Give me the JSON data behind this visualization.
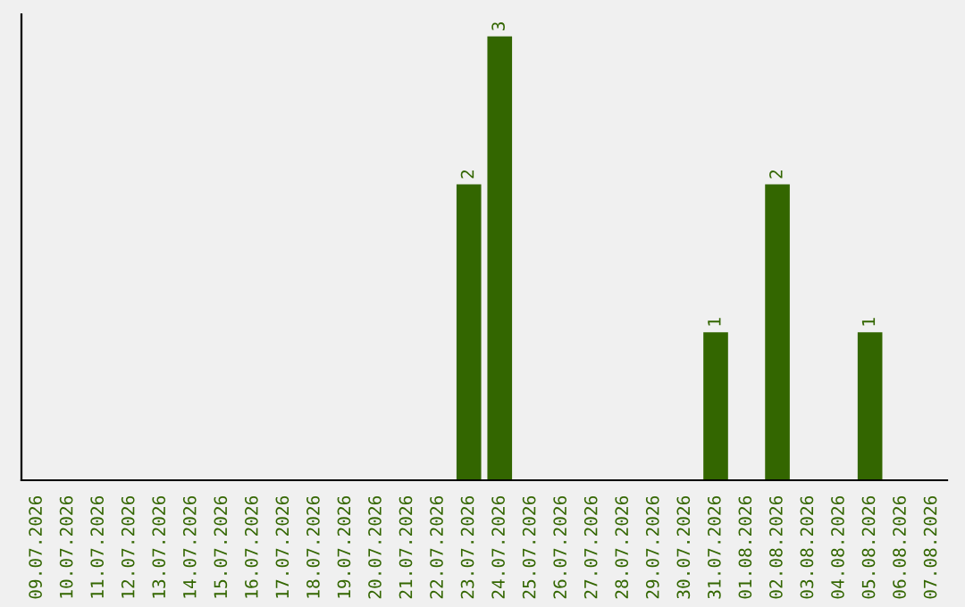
{
  "chart_data": {
    "type": "bar",
    "categories": [
      "09.07.2026",
      "10.07.2026",
      "11.07.2026",
      "12.07.2026",
      "13.07.2026",
      "14.07.2026",
      "15.07.2026",
      "16.07.2026",
      "17.07.2026",
      "18.07.2026",
      "19.07.2026",
      "20.07.2026",
      "21.07.2026",
      "22.07.2026",
      "23.07.2026",
      "24.07.2026",
      "25.07.2026",
      "26.07.2026",
      "27.07.2026",
      "28.07.2026",
      "29.07.2026",
      "30.07.2026",
      "31.07.2026",
      "01.08.2026",
      "02.08.2026",
      "03.08.2026",
      "04.08.2026",
      "05.08.2026",
      "06.08.2026",
      "07.08.2026"
    ],
    "values": [
      null,
      null,
      null,
      null,
      null,
      null,
      null,
      null,
      null,
      null,
      null,
      null,
      null,
      null,
      2,
      3,
      null,
      null,
      null,
      null,
      null,
      null,
      1,
      null,
      2,
      null,
      null,
      1,
      null,
      null
    ],
    "data_labels": true,
    "color": "#336600",
    "tick_labels": "x",
    "grid": false,
    "legend": false
  }
}
